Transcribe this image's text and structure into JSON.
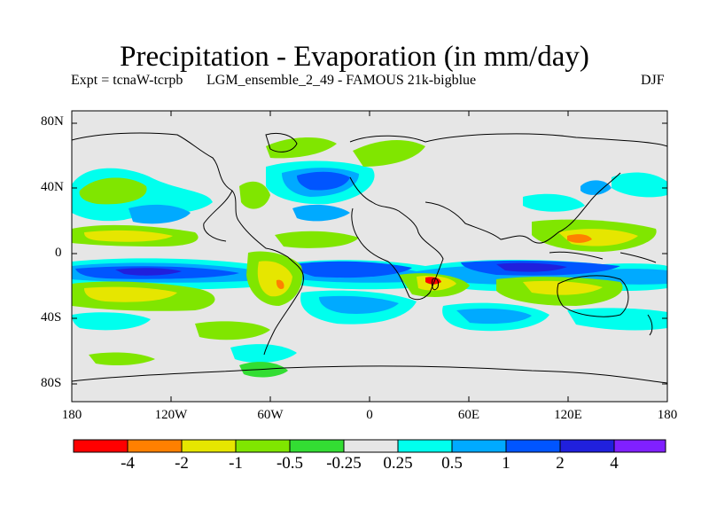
{
  "title": "Precipitation - Evaporation (in mm/day)",
  "subtitle_left": "Expt = tcnaW-tcrpb",
  "subtitle_middle": "LGM_ensemble_2_49 - FAMOUS 21k-bigblue",
  "subtitle_right": "DJF",
  "y_ticks": [
    "80N",
    "40N",
    "0",
    "40S",
    "80S"
  ],
  "x_ticks": [
    "180",
    "120W",
    "60W",
    "0",
    "60E",
    "120E",
    "180"
  ],
  "colorbar": {
    "colors": [
      "#ff0000",
      "#ff8000",
      "#e6e600",
      "#80e600",
      "#33dd33",
      "#e6e6e6",
      "#00ffee",
      "#00aaff",
      "#0055ff",
      "#2020dd",
      "#8020ff"
    ],
    "labels": [
      "-4",
      "-2",
      "-1",
      "-0.5",
      "-0.25",
      "0.25",
      "0.5",
      "1",
      "2",
      "4"
    ]
  },
  "colors": {
    "background_field": "#e6e6e6",
    "coastline": "#000000"
  }
}
